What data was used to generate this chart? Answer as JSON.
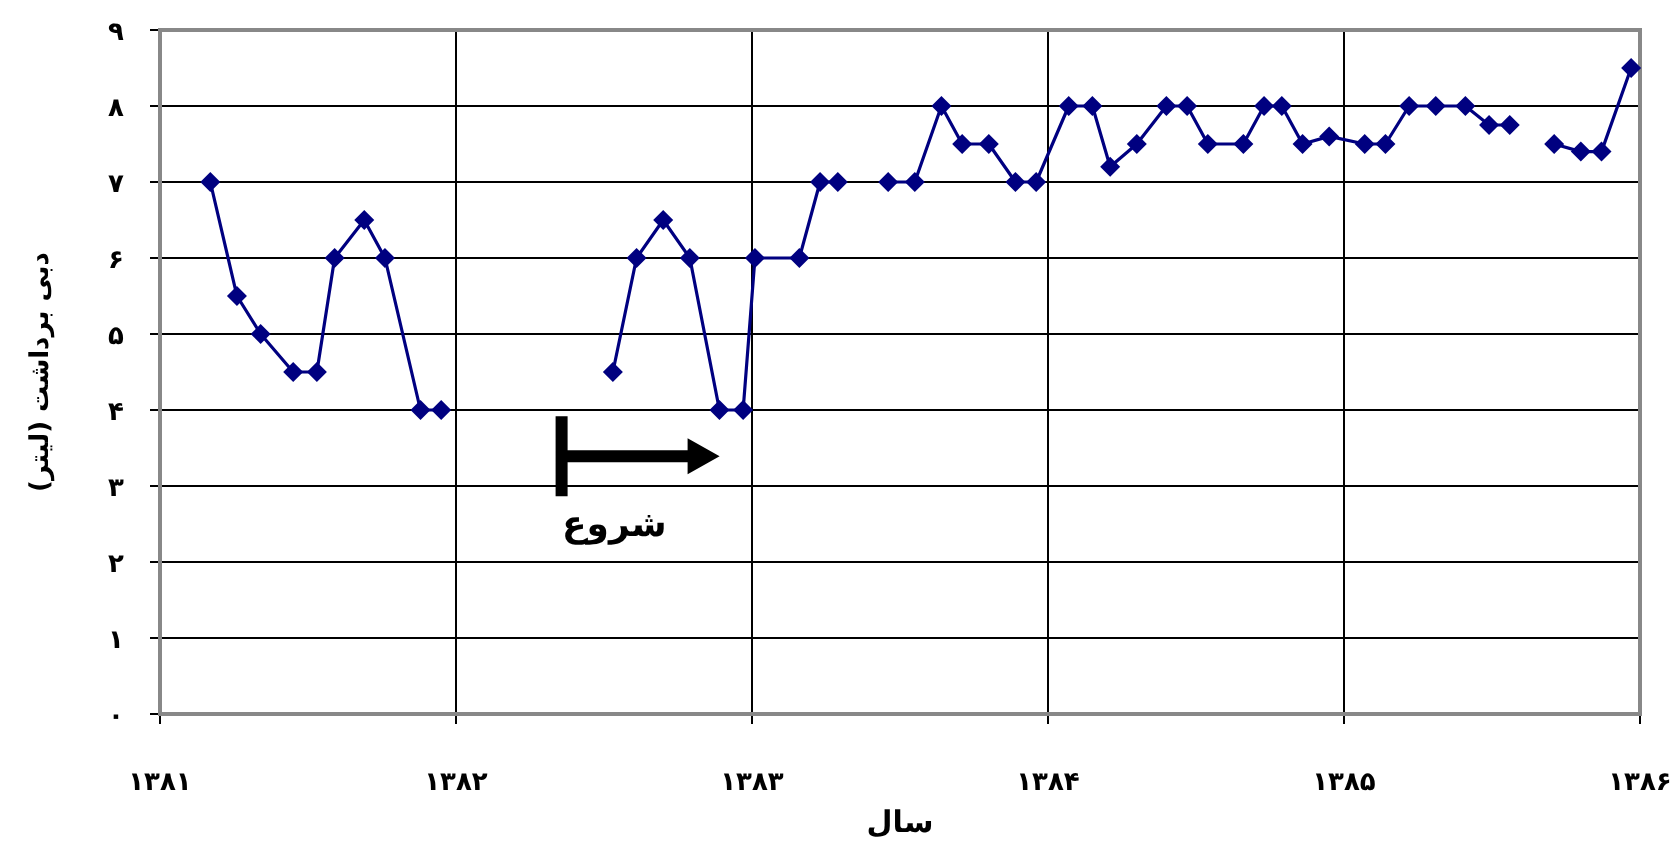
{
  "chart_data": {
    "type": "line",
    "xlabel": "سال",
    "ylabel": "دبی برداشت (لیتر)",
    "series": [
      {
        "color": "#000080",
        "x": [
          1381.17,
          1381.26,
          1381.34,
          1381.45,
          1381.53,
          1381.59,
          1381.69,
          1381.76,
          1381.88,
          1381.95
        ],
        "values": [
          7,
          5.5,
          5,
          4.5,
          4.5,
          6,
          6.5,
          6,
          4,
          4
        ]
      },
      {
        "color": "#000080",
        "x": [
          1382.53,
          1382.61,
          1382.7,
          1382.79,
          1382.89,
          1382.97,
          1383.01,
          1383.16,
          1383.23,
          1383.29
        ],
        "values": [
          4.5,
          6,
          6.5,
          6,
          4,
          4,
          6,
          6,
          7,
          7
        ]
      },
      {
        "color": "#000080",
        "x": [
          1383.46,
          1383.55,
          1383.64,
          1383.71,
          1383.8,
          1383.89,
          1383.96,
          1384.07,
          1384.15,
          1384.21,
          1384.3,
          1384.4,
          1384.47,
          1384.54,
          1384.66,
          1384.73,
          1384.79,
          1384.86,
          1384.95,
          1385.07,
          1385.14,
          1385.22,
          1385.31,
          1385.41,
          1385.49,
          1385.56
        ],
        "values": [
          7,
          7,
          8,
          7.5,
          7.5,
          7,
          7,
          8,
          8,
          7.2,
          7.5,
          8,
          8,
          7.5,
          7.5,
          8,
          8,
          7.5,
          7.6,
          7.5,
          7.5,
          8,
          8,
          8,
          7.75,
          7.75
        ]
      },
      {
        "color": "#000080",
        "x": [
          1385.71,
          1385.8,
          1385.87,
          1385.97
        ],
        "values": [
          7.5,
          7.4,
          7.4,
          8.5
        ]
      }
    ],
    "xlim": [
      1381,
      1386
    ],
    "ylim": [
      0,
      9
    ],
    "xticks": [
      {
        "value": 1381,
        "label": "۱۳۸۱"
      },
      {
        "value": 1382,
        "label": "۱۳۸۲"
      },
      {
        "value": 1383,
        "label": "۱۳۸۳"
      },
      {
        "value": 1384,
        "label": "۱۳۸۴"
      },
      {
        "value": 1385,
        "label": "۱۳۸۵"
      },
      {
        "value": 1386,
        "label": "۱۳۸۶"
      }
    ],
    "yticks": [
      {
        "value": 0,
        "label": "۰"
      },
      {
        "value": 1,
        "label": "۱"
      },
      {
        "value": 2,
        "label": "۲"
      },
      {
        "value": 3,
        "label": "۳"
      },
      {
        "value": 4,
        "label": "۴"
      },
      {
        "value": 5,
        "label": "۵"
      },
      {
        "value": 6,
        "label": "۶"
      },
      {
        "value": 7,
        "label": "۷"
      },
      {
        "value": 8,
        "label": "۸"
      },
      {
        "value": 9,
        "label": "۹"
      }
    ],
    "grid": true,
    "marker": "diamond",
    "line_style": "solid",
    "annotations": [
      "شروع"
    ]
  }
}
